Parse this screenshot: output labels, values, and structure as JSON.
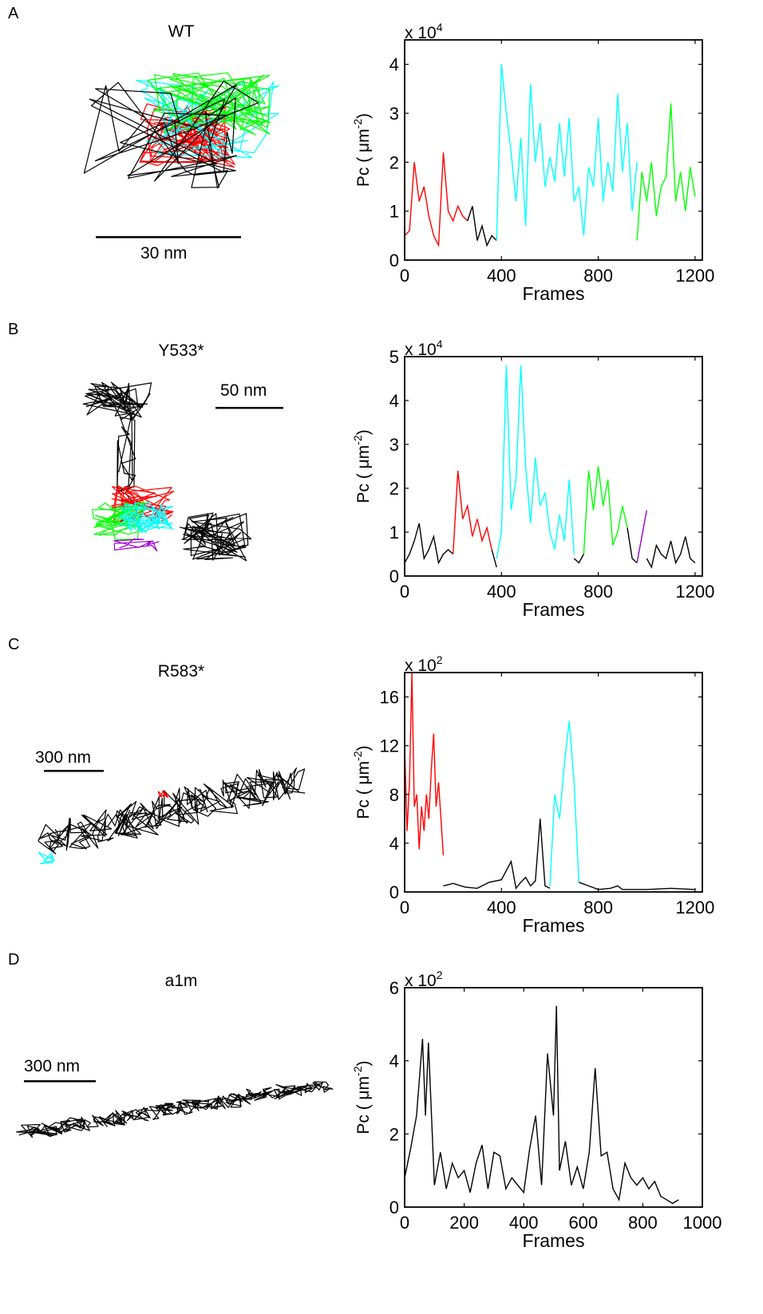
{
  "panels": [
    {
      "letter": "A",
      "title": "WT",
      "scalebar_label": "30 nm",
      "trajectory_colors": [
        "#000000",
        "#ff0000",
        "#00ffff",
        "#00ff00"
      ],
      "chart_data": {
        "type": "line",
        "xlabel": "Frames",
        "ylabel_main": "Pc ( μm",
        "ylabel_sup": "-2",
        "ylabel_end": ")",
        "multiplier_base": "x 10",
        "multiplier_exp": "4",
        "xlim": [
          0,
          1230
        ],
        "ylim": [
          0,
          4.5
        ],
        "xticks": [
          0,
          400,
          800,
          1200
        ],
        "xtick_labels": [
          "0",
          "400",
          "800",
          "1200"
        ],
        "yticks": [
          0,
          1,
          2,
          3,
          4
        ],
        "ytick_labels": [
          "0",
          "1",
          "2",
          "3",
          "4"
        ],
        "series": [
          {
            "color": "#ff0000",
            "x": [
              0,
              20,
              40,
              60,
              80,
              100,
              120,
              140,
              160,
              180,
              200,
              220,
              240,
              260
            ],
            "y": [
              0.5,
              0.6,
              2.0,
              1.2,
              1.5,
              0.9,
              0.5,
              0.3,
              2.2,
              1.0,
              0.8,
              1.1,
              0.9,
              0.8
            ]
          },
          {
            "color": "#000000",
            "x": [
              260,
              280,
              300,
              320,
              340,
              360,
              380
            ],
            "y": [
              0.8,
              1.1,
              0.4,
              0.7,
              0.3,
              0.5,
              0.4
            ]
          },
          {
            "color": "#00ffff",
            "x": [
              380,
              400,
              420,
              440,
              460,
              480,
              500,
              520,
              540,
              560,
              580,
              600,
              620,
              640,
              660,
              680,
              700,
              720,
              740,
              760,
              780,
              800,
              820,
              840,
              860,
              880,
              900,
              920,
              940,
              960
            ],
            "y": [
              0.4,
              4.0,
              3.0,
              2.2,
              1.2,
              2.5,
              0.7,
              3.6,
              2.0,
              2.8,
              1.5,
              2.1,
              1.6,
              2.8,
              1.7,
              2.9,
              1.2,
              1.5,
              0.5,
              1.9,
              1.5,
              2.9,
              1.2,
              2.0,
              1.4,
              3.4,
              1.8,
              2.8,
              1.0,
              2.0
            ]
          },
          {
            "color": "#00ff00",
            "x": [
              960,
              980,
              1000,
              1020,
              1040,
              1060,
              1080,
              1100,
              1120,
              1140,
              1160,
              1180,
              1200
            ],
            "y": [
              0.4,
              1.8,
              1.2,
              2.0,
              0.9,
              1.5,
              1.7,
              3.2,
              1.2,
              1.8,
              1.0,
              1.9,
              1.3
            ]
          }
        ]
      }
    },
    {
      "letter": "B",
      "title": "Y533*",
      "scalebar_label": "50 nm",
      "trajectory_colors": [
        "#000000",
        "#ff0000",
        "#00ffff",
        "#00ff00",
        "#9900cc"
      ],
      "chart_data": {
        "type": "line",
        "xlabel": "Frames",
        "ylabel_main": "Pc ( μm",
        "ylabel_sup": "-2",
        "ylabel_end": ")",
        "multiplier_base": "x 10",
        "multiplier_exp": "4",
        "xlim": [
          0,
          1230
        ],
        "ylim": [
          0,
          5
        ],
        "xticks": [
          0,
          400,
          800,
          1200
        ],
        "xtick_labels": [
          "0",
          "400",
          "800",
          "1200"
        ],
        "yticks": [
          0,
          1,
          2,
          3,
          4,
          5
        ],
        "ytick_labels": [
          "0",
          "1",
          "2",
          "3",
          "4",
          "5"
        ],
        "series": [
          {
            "color": "#000000",
            "x": [
              0,
              20,
              40,
              60,
              80,
              100,
              120,
              140,
              160,
              180,
              200
            ],
            "y": [
              0.3,
              0.5,
              0.8,
              1.2,
              0.4,
              0.6,
              0.9,
              0.3,
              0.5,
              0.6,
              0.5
            ]
          },
          {
            "color": "#ff0000",
            "x": [
              200,
              220,
              240,
              260,
              280,
              300,
              320,
              340,
              360
            ],
            "y": [
              0.5,
              2.4,
              1.3,
              1.6,
              0.9,
              1.3,
              0.8,
              1.1,
              0.6
            ]
          },
          {
            "color": "#000000",
            "x": [
              360,
              380
            ],
            "y": [
              0.6,
              0.2
            ]
          },
          {
            "color": "#00ffff",
            "x": [
              380,
              400,
              420,
              440,
              460,
              480,
              500,
              520,
              540,
              560,
              580,
              600,
              620,
              640,
              660,
              680,
              700
            ],
            "y": [
              0.4,
              1.0,
              4.8,
              1.5,
              2.2,
              4.8,
              2.5,
              1.2,
              2.7,
              1.6,
              1.9,
              1.0,
              0.6,
              1.4,
              0.8,
              2.2,
              0.5
            ]
          },
          {
            "color": "#000000",
            "x": [
              700,
              720,
              740
            ],
            "y": [
              0.4,
              0.3,
              0.5
            ]
          },
          {
            "color": "#00ff00",
            "x": [
              740,
              760,
              780,
              800,
              820,
              840,
              860,
              880,
              900,
              920
            ],
            "y": [
              0.5,
              2.4,
              1.5,
              2.5,
              1.6,
              2.2,
              0.7,
              1.0,
              1.6,
              1.1
            ]
          },
          {
            "color": "#000000",
            "x": [
              920,
              940,
              960
            ],
            "y": [
              1.1,
              0.4,
              0.3
            ]
          },
          {
            "color": "#9900cc",
            "x": [
              960,
              980,
              1000
            ],
            "y": [
              0.3,
              0.9,
              1.5
            ]
          },
          {
            "color": "#000000",
            "x": [
              1000,
              1020,
              1040,
              1060,
              1080,
              1100,
              1120,
              1140,
              1160,
              1180,
              1200
            ],
            "y": [
              0.4,
              0.2,
              0.7,
              0.5,
              0.4,
              0.8,
              0.3,
              0.5,
              0.9,
              0.4,
              0.3
            ]
          }
        ]
      }
    },
    {
      "letter": "C",
      "title": "R583*",
      "scalebar_label": "300 nm",
      "trajectory_colors": [
        "#000000",
        "#ff0000",
        "#00ffff"
      ],
      "chart_data": {
        "type": "line",
        "xlabel": "Frames",
        "ylabel_main": "Pc ( μm",
        "ylabel_sup": "-2",
        "ylabel_end": ")",
        "multiplier_base": "x 10",
        "multiplier_exp": "2",
        "xlim": [
          0,
          1230
        ],
        "ylim": [
          0,
          18
        ],
        "xticks": [
          0,
          400,
          800,
          1200
        ],
        "xtick_labels": [
          "0",
          "400",
          "800",
          "1200"
        ],
        "yticks": [
          0,
          4,
          8,
          12,
          16
        ],
        "ytick_labels": [
          "0",
          "4",
          "8",
          "12",
          "16"
        ],
        "series": [
          {
            "color": "#ff0000",
            "x": [
              0,
              10,
              20,
              30,
              40,
              50,
              60,
              70,
              80,
              90,
              100,
              110,
              120,
              130,
              140,
              150,
              160
            ],
            "y": [
              12,
              5,
              9,
              18,
              7,
              8,
              3.5,
              7,
              5,
              8,
              6,
              10,
              13,
              7,
              9,
              6,
              3
            ]
          },
          {
            "color": "#000000",
            "x": [
              160,
              200,
              250,
              300,
              350,
              400,
              440,
              460,
              480,
              500,
              520,
              540,
              560,
              580,
              600
            ],
            "y": [
              0.5,
              0.7,
              0.4,
              0.3,
              0.8,
              1.0,
              2.5,
              0.3,
              0.8,
              1.2,
              0.5,
              0.9,
              6.0,
              0.5,
              0.3
            ]
          },
          {
            "color": "#00ffff",
            "x": [
              600,
              620,
              640,
              660,
              680,
              700,
              720
            ],
            "y": [
              0.5,
              8.0,
              6.0,
              10.5,
              14.0,
              9.0,
              0.8
            ]
          },
          {
            "color": "#000000",
            "x": [
              720,
              760,
              800,
              850,
              880,
              900,
              1000,
              1100,
              1200
            ],
            "y": [
              0.8,
              0.5,
              0.2,
              0.3,
              0.5,
              0.2,
              0.2,
              0.3,
              0.2
            ]
          }
        ]
      }
    },
    {
      "letter": "D",
      "title": "a1m",
      "scalebar_label": "300 nm",
      "trajectory_colors": [
        "#000000"
      ],
      "chart_data": {
        "type": "line",
        "xlabel": "Frames",
        "ylabel_main": "Pc ( μm",
        "ylabel_sup": "-2",
        "ylabel_end": ")",
        "multiplier_base": "x 10",
        "multiplier_exp": "2",
        "xlim": [
          0,
          1000
        ],
        "ylim": [
          0,
          6
        ],
        "xticks": [
          0,
          200,
          400,
          600,
          800,
          1000
        ],
        "xtick_labels": [
          "0",
          "200",
          "400",
          "600",
          "800",
          "1000"
        ],
        "yticks": [
          0,
          2,
          4,
          6
        ],
        "ytick_labels": [
          "0",
          "2",
          "4",
          "6"
        ],
        "series": [
          {
            "color": "#000000",
            "x": [
              0,
              20,
              40,
              60,
              70,
              80,
              100,
              120,
              140,
              160,
              180,
              200,
              220,
              240,
              260,
              280,
              300,
              320,
              340,
              360,
              380,
              400,
              420,
              440,
              460,
              480,
              500,
              510,
              520,
              540,
              560,
              580,
              600,
              620,
              640,
              660,
              680,
              700,
              720,
              740,
              760,
              780,
              800,
              820,
              840,
              860,
              880,
              900,
              920
            ],
            "y": [
              0.8,
              1.6,
              2.5,
              4.6,
              2.5,
              4.5,
              0.6,
              1.5,
              0.5,
              1.2,
              0.8,
              1.0,
              0.4,
              1.2,
              1.7,
              0.5,
              1.5,
              1.4,
              0.5,
              0.8,
              0.6,
              0.4,
              1.6,
              2.5,
              0.6,
              4.2,
              2.5,
              5.5,
              1.0,
              1.8,
              0.6,
              1.1,
              0.5,
              1.5,
              3.8,
              1.4,
              1.5,
              0.5,
              0.2,
              1.2,
              0.8,
              0.6,
              0.8,
              0.5,
              0.7,
              0.3,
              0.2,
              0.1,
              0.2
            ]
          }
        ]
      }
    }
  ]
}
